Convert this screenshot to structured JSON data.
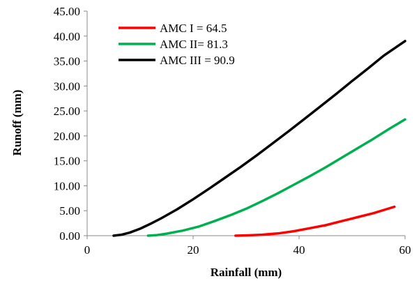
{
  "chart_data": {
    "type": "line",
    "title": "",
    "xlabel": "Rainfall (mm)",
    "ylabel": "Runoff (mm)",
    "xlim": [
      0,
      60
    ],
    "ylim": [
      0,
      45
    ],
    "xticks": [
      0,
      20,
      40,
      60
    ],
    "yticks": [
      0,
      5,
      10,
      15,
      20,
      25,
      30,
      35,
      40,
      45
    ],
    "ytick_labels": [
      "0.00",
      "5.00",
      "10.00",
      "15.00",
      "20.00",
      "25.00",
      "30.00",
      "35.00",
      "40.00",
      "45.00"
    ],
    "grid": false,
    "legend_position": "top-left",
    "series": [
      {
        "name": "AMC I = 64.5",
        "color": "#ff0000",
        "x": [
          28,
          30,
          33,
          36,
          39,
          42,
          45,
          48,
          51,
          54,
          58
        ],
        "y": [
          0.0,
          0.05,
          0.2,
          0.45,
          0.9,
          1.5,
          2.1,
          2.9,
          3.7,
          4.5,
          5.8
        ]
      },
      {
        "name": "AMC II= 81.3",
        "color": "#00b050",
        "x": [
          11.5,
          13,
          15,
          18,
          21,
          24,
          27,
          30,
          33,
          36,
          39,
          42,
          45,
          48,
          51,
          54,
          57,
          60
        ],
        "y": [
          0.0,
          0.1,
          0.4,
          1.0,
          1.8,
          2.9,
          4.1,
          5.4,
          6.9,
          8.5,
          10.2,
          11.9,
          13.7,
          15.6,
          17.5,
          19.4,
          21.4,
          23.3
        ]
      },
      {
        "name": "AMC III = 90.9",
        "color": "#000000",
        "x": [
          5,
          6.5,
          8,
          10,
          12,
          14,
          17,
          20,
          23,
          26,
          29,
          32,
          35,
          38,
          41,
          44,
          47,
          50,
          53,
          56,
          60
        ],
        "y": [
          0.0,
          0.2,
          0.6,
          1.4,
          2.4,
          3.5,
          5.3,
          7.3,
          9.4,
          11.6,
          13.8,
          16.1,
          18.5,
          20.9,
          23.4,
          25.9,
          28.4,
          31.0,
          33.5,
          36.1,
          39.0
        ]
      }
    ]
  }
}
